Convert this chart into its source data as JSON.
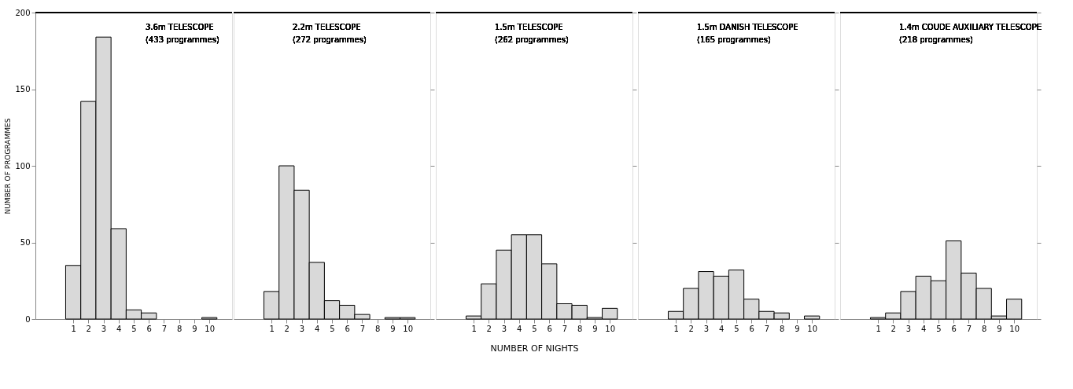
{
  "chart_data": [
    {
      "type": "histogram",
      "title": "3.6m TELESCOPE",
      "subtitle": "(433 programmes)",
      "ylabel": "NUMBER OF PROGRAMMES",
      "bins": [
        0.5,
        1.5,
        2.5,
        3.5,
        4.5,
        5.5,
        6.5,
        7.5,
        8.5,
        9.5,
        10.5
      ],
      "values": [
        35,
        142,
        184,
        59,
        6,
        4,
        0,
        0,
        0,
        1
      ],
      "color": "#d9d9d9",
      "xlim": [
        -1.5,
        11.5
      ],
      "xticks": [
        1,
        2,
        3,
        4,
        5,
        6,
        7,
        8,
        9,
        10
      ],
      "ylim": [
        0,
        200
      ],
      "yticks": [
        0,
        50,
        100,
        150,
        200
      ],
      "grid": false
    },
    {
      "type": "histogram",
      "title": "2.2m TELESCOPE",
      "subtitle": "(272 programmes)",
      "bins": [
        0.5,
        1.5,
        2.5,
        3.5,
        4.5,
        5.5,
        6.5,
        7.5,
        8.5,
        9.5,
        10.5
      ],
      "values": [
        18,
        100,
        84,
        37,
        12,
        9,
        3,
        0,
        1,
        1
      ],
      "color": "#d9d9d9",
      "xlim": [
        -1.5,
        11.5
      ],
      "xticks": [
        1,
        2,
        3,
        4,
        5,
        6,
        7,
        8,
        9,
        10
      ],
      "ylim": [
        0,
        200
      ],
      "yticks": [
        0,
        50,
        100,
        150,
        200
      ],
      "tick_labels": "x",
      "grid": false
    },
    {
      "type": "histogram",
      "title": "1.5m TELESCOPE",
      "subtitle": "(262 programmes)",
      "xlabel": "NUMBER OF NIGHTS",
      "bins": [
        0.5,
        1.5,
        2.5,
        3.5,
        4.5,
        5.5,
        6.5,
        7.5,
        8.5,
        9.5,
        10.5
      ],
      "values": [
        2,
        23,
        45,
        55,
        55,
        36,
        10,
        9,
        1,
        7
      ],
      "color": "#d9d9d9",
      "xlim": [
        -1.5,
        11.5
      ],
      "xticks": [
        1,
        2,
        3,
        4,
        5,
        6,
        7,
        8,
        9,
        10
      ],
      "ylim": [
        0,
        200
      ],
      "yticks": [
        0,
        50,
        100,
        150,
        200
      ],
      "tick_labels": "x",
      "grid": false
    },
    {
      "type": "histogram",
      "title": "1.5m DANISH TELESCOPE",
      "subtitle": "(165 programmes)",
      "bins": [
        0.5,
        1.5,
        2.5,
        3.5,
        4.5,
        5.5,
        6.5,
        7.5,
        8.5,
        9.5,
        10.5
      ],
      "values": [
        5,
        20,
        31,
        28,
        32,
        13,
        5,
        4,
        0,
        2
      ],
      "color": "#d9d9d9",
      "xlim": [
        -1.5,
        11.5
      ],
      "xticks": [
        1,
        2,
        3,
        4,
        5,
        6,
        7,
        8,
        9,
        10
      ],
      "ylim": [
        0,
        200
      ],
      "yticks": [
        0,
        50,
        100,
        150,
        200
      ],
      "tick_labels": "x",
      "grid": false
    },
    {
      "type": "histogram",
      "title": "1.4m COUDE AUXILIARY TELESCOPE",
      "subtitle": "(218 programmes)",
      "bins": [
        0.5,
        1.5,
        2.5,
        3.5,
        4.5,
        5.5,
        6.5,
        7.5,
        8.5,
        9.5,
        10.5
      ],
      "values": [
        1,
        4,
        18,
        28,
        25,
        51,
        30,
        20,
        2,
        13
      ],
      "color": "#d9d9d9",
      "xlim": [
        -1.5,
        11.5
      ],
      "xticks": [
        1,
        2,
        3,
        4,
        5,
        6,
        7,
        8,
        9,
        10
      ],
      "ylim": [
        0,
        200
      ],
      "yticks": [
        0,
        50,
        100,
        150,
        200
      ],
      "tick_labels": "x",
      "grid": false
    }
  ]
}
